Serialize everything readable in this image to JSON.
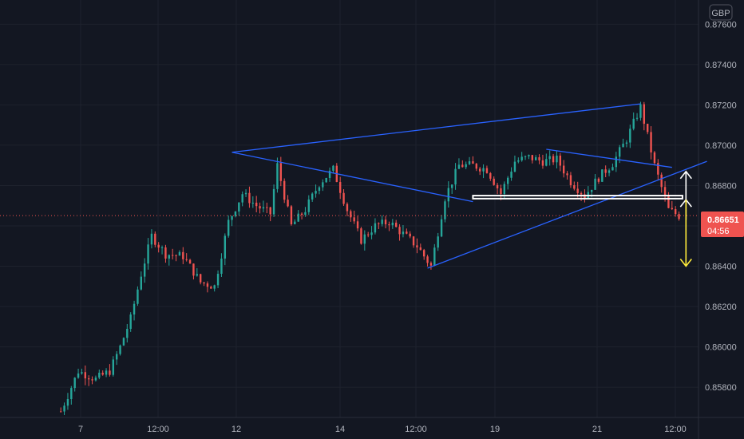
{
  "chart_data": {
    "type": "candlestick",
    "currency": "GBP",
    "grid": true,
    "colors": {
      "background": "#131722",
      "grid": "#1e222d",
      "up": "#26a69a",
      "down": "#ef5350",
      "trendline": "#2962ff",
      "support_zone": "#ffffff",
      "arrow_up": "#ffffff",
      "arrow_down": "#ffeb3b",
      "price_line": "#ef5350",
      "axis_text": "#b2b5be"
    },
    "y_axis": {
      "ylim": [
        0.8565,
        0.8772
      ],
      "ticks": [
        "0.85800",
        "0.86000",
        "0.86200",
        "0.86400",
        "0.86600",
        "0.86800",
        "0.87000",
        "0.87200",
        "0.87400",
        "0.87600"
      ]
    },
    "x_axis": {
      "ticks": [
        "7",
        "12:00",
        "12",
        "14",
        "12:00",
        "19",
        "21",
        "12:00"
      ]
    },
    "last_price": {
      "label": "0.86651",
      "value": 0.86651,
      "countdown": "04:56"
    },
    "price_path": [
      [
        0,
        0.8568
      ],
      [
        5,
        0.8588
      ],
      [
        10,
        0.8584
      ],
      [
        14,
        0.8588
      ],
      [
        17,
        0.86
      ],
      [
        20,
        0.8614
      ],
      [
        23,
        0.8636
      ],
      [
        26,
        0.8655
      ],
      [
        30,
        0.8646
      ],
      [
        35,
        0.8645
      ],
      [
        40,
        0.8632
      ],
      [
        44,
        0.863
      ],
      [
        48,
        0.8662
      ],
      [
        52,
        0.8676
      ],
      [
        56,
        0.867
      ],
      [
        60,
        0.8666
      ],
      [
        62,
        0.869
      ],
      [
        66,
        0.866
      ],
      [
        70,
        0.8668
      ],
      [
        74,
        0.8681
      ],
      [
        78,
        0.8688
      ],
      [
        82,
        0.8668
      ],
      [
        86,
        0.8653
      ],
      [
        90,
        0.866
      ],
      [
        94,
        0.8662
      ],
      [
        98,
        0.8656
      ],
      [
        102,
        0.865
      ],
      [
        106,
        0.864
      ],
      [
        110,
        0.8674
      ],
      [
        114,
        0.869
      ],
      [
        118,
        0.869
      ],
      [
        122,
        0.8688
      ],
      [
        126,
        0.8676
      ],
      [
        130,
        0.8692
      ],
      [
        134,
        0.8694
      ],
      [
        138,
        0.8692
      ],
      [
        142,
        0.8693
      ],
      [
        146,
        0.8682
      ],
      [
        150,
        0.8675
      ],
      [
        154,
        0.8684
      ],
      [
        158,
        0.8691
      ],
      [
        162,
        0.8703
      ],
      [
        166,
        0.8719
      ],
      [
        170,
        0.869
      ],
      [
        174,
        0.8668
      ],
      [
        177,
        0.8665
      ]
    ],
    "trendlines": [
      {
        "from": [
          49,
          0.86965
        ],
        "to": [
          166,
          0.87205
        ]
      },
      {
        "from": [
          49,
          0.86965
        ],
        "to": [
          118,
          0.8672
        ]
      },
      {
        "from": [
          105,
          0.8639
        ],
        "to": [
          185,
          0.8692
        ]
      },
      {
        "from": [
          139,
          0.8698
        ],
        "to": [
          175,
          0.8689
        ]
      }
    ],
    "support_zone": {
      "from": [
        118,
        0.8675
      ],
      "to": [
        178,
        0.86735
      ]
    },
    "projection": {
      "x": 179,
      "up": [
        0.8673,
        0.8687
      ],
      "up_small": [
        0.8663,
        0.8673
      ],
      "down": [
        0.8673,
        0.864
      ]
    }
  }
}
